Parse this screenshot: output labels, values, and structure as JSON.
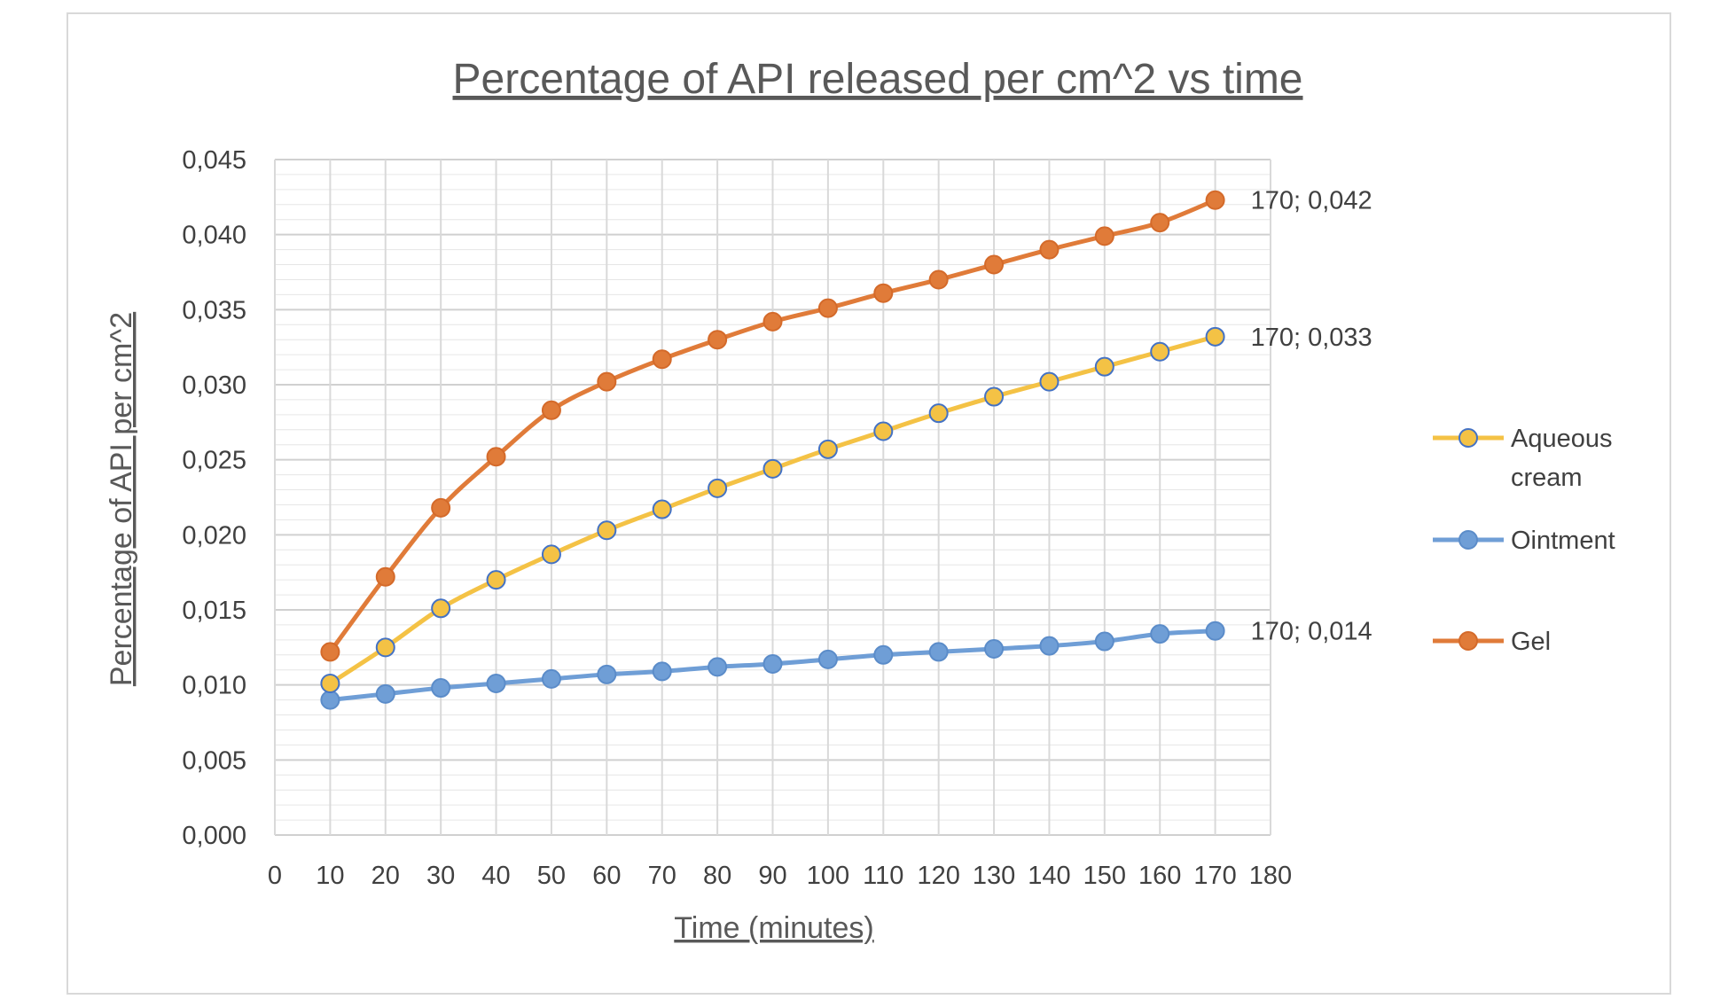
{
  "chart_data": {
    "type": "line",
    "title": "Percentage of API released per cm^2 vs time",
    "xlabel": "Time (minutes)",
    "ylabel": "Percentage of API per cm^2",
    "xlim": [
      0,
      180
    ],
    "ylim": [
      0,
      0.045
    ],
    "x_ticks": [
      "0",
      "10",
      "20",
      "30",
      "40",
      "50",
      "60",
      "70",
      "80",
      "90",
      "100",
      "110",
      "120",
      "130",
      "140",
      "150",
      "160",
      "170",
      "180"
    ],
    "y_ticks": [
      "0,000",
      "0,005",
      "0,010",
      "0,015",
      "0,020",
      "0,025",
      "0,030",
      "0,035",
      "0,040",
      "0,045"
    ],
    "grid": true,
    "legend_position": "right",
    "x": [
      10,
      20,
      30,
      40,
      50,
      60,
      70,
      80,
      90,
      100,
      110,
      120,
      130,
      140,
      150,
      160,
      170
    ],
    "series": [
      {
        "name": "Aqueous cream",
        "legend_lines": [
          "Aqueous",
          "cream"
        ],
        "line_color": "#f4c245",
        "marker_fill": "#f4c245",
        "marker_stroke": "#4472c4",
        "values": [
          0.0101,
          0.0125,
          0.0151,
          0.017,
          0.0187,
          0.0203,
          0.0217,
          0.0231,
          0.0244,
          0.0257,
          0.0269,
          0.0281,
          0.0292,
          0.0302,
          0.0312,
          0.0322,
          0.0332
        ],
        "end_label": "170; 0,033"
      },
      {
        "name": "Ointment",
        "legend_lines": [
          "Ointment"
        ],
        "line_color": "#6f9ed6",
        "marker_fill": "#6f9ed6",
        "marker_stroke": "#5b8cc9",
        "values": [
          0.009,
          0.0094,
          0.0098,
          0.0101,
          0.0104,
          0.0107,
          0.0109,
          0.0112,
          0.0114,
          0.0117,
          0.012,
          0.0122,
          0.0124,
          0.0126,
          0.0129,
          0.0134,
          0.0136
        ],
        "end_label": "170; 0,014"
      },
      {
        "name": "Gel",
        "legend_lines": [
          "Gel"
        ],
        "line_color": "#e07b39",
        "marker_fill": "#e07b39",
        "marker_stroke": "#d46a2a",
        "values": [
          0.0122,
          0.0172,
          0.0218,
          0.0252,
          0.0283,
          0.0302,
          0.0317,
          0.033,
          0.0342,
          0.0351,
          0.0361,
          0.037,
          0.038,
          0.039,
          0.0399,
          0.0408,
          0.0423
        ],
        "end_label": "170; 0,042"
      }
    ]
  }
}
